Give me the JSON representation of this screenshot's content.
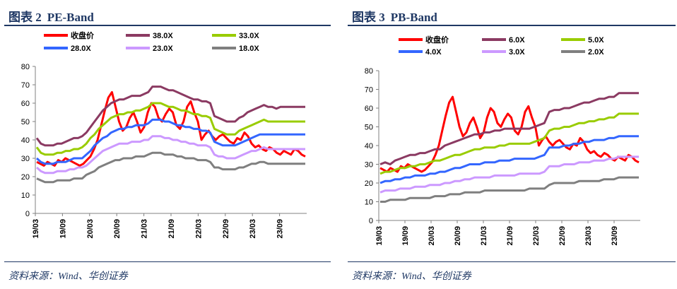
{
  "panels": [
    {
      "figure_label": "图表 2",
      "figure_title": "PE-Band",
      "source": "资料来源：Wind、华创证券"
    },
    {
      "figure_label": "图表 3",
      "figure_title": "PB-Band",
      "source": "资料来源：Wind、华创证券"
    }
  ],
  "colors": {
    "price": "#ff0000",
    "band_high": "#8b3a62",
    "band_2": "#99cc00",
    "band_3": "#3366ff",
    "band_4": "#cc99ff",
    "band_low": "#7f7f7f",
    "title": "#1f3864"
  },
  "chart_data": [
    {
      "type": "line",
      "title": "PE-Band",
      "x_tick_labels": [
        "19/03",
        "19/09",
        "20/03",
        "20/09",
        "21/03",
        "21/09",
        "22/03",
        "22/09",
        "23/03",
        "23/09"
      ],
      "ylim": [
        0,
        80
      ],
      "y_ticks": [
        0,
        10,
        20,
        30,
        40,
        50,
        60,
        70,
        80
      ],
      "grid": false,
      "legend_position": "top",
      "series": [
        {
          "name": "收盘价",
          "color_key": "price",
          "values": [
            28,
            27,
            26,
            28,
            27,
            26,
            29,
            28,
            30,
            29,
            28,
            27,
            26,
            27,
            29,
            31,
            35,
            40,
            48,
            56,
            63,
            66,
            58,
            50,
            45,
            47,
            52,
            55,
            50,
            44,
            47,
            55,
            60,
            58,
            52,
            50,
            54,
            57,
            55,
            48,
            46,
            50,
            58,
            61,
            55,
            50,
            40,
            43,
            45,
            42,
            40,
            42,
            43,
            41,
            39,
            38,
            41,
            40,
            44,
            42,
            38,
            36,
            37,
            35,
            34,
            36,
            35,
            33,
            32,
            34,
            33,
            32,
            35,
            34,
            32,
            31
          ]
        },
        {
          "name": "38.0X",
          "color_key": "band_high",
          "values": [
            41,
            38,
            37,
            37,
            37,
            38,
            38,
            39,
            40,
            41,
            41,
            42,
            44,
            47,
            50,
            53,
            56,
            58,
            60,
            61,
            62,
            62,
            63,
            64,
            64,
            64,
            65,
            66,
            69,
            69,
            69,
            68,
            67,
            67,
            66,
            65,
            64,
            63,
            62,
            62,
            61,
            61,
            60,
            53,
            52,
            51,
            50,
            50,
            50,
            52,
            53,
            55,
            56,
            57,
            58,
            59,
            58,
            58,
            57,
            58,
            58,
            58,
            58,
            58,
            58,
            58
          ]
        },
        {
          "name": "33.0X",
          "color_key": "band_2",
          "values": [
            36,
            33,
            32,
            32,
            32,
            33,
            33,
            34,
            34,
            35,
            35,
            36,
            38,
            41,
            43,
            46,
            48,
            50,
            52,
            53,
            54,
            54,
            55,
            55,
            56,
            56,
            57,
            58,
            60,
            60,
            60,
            59,
            58,
            58,
            57,
            56,
            56,
            55,
            54,
            54,
            53,
            53,
            52,
            46,
            45,
            44,
            43,
            43,
            43,
            45,
            46,
            47,
            48,
            49,
            50,
            51,
            50,
            50,
            50,
            50,
            50,
            50,
            50,
            50,
            50,
            50
          ]
        },
        {
          "name": "28.0X",
          "color_key": "band_3",
          "values": [
            30,
            28,
            27,
            27,
            27,
            28,
            28,
            28,
            29,
            30,
            30,
            30,
            32,
            34,
            37,
            39,
            41,
            42,
            44,
            45,
            46,
            46,
            47,
            47,
            48,
            48,
            48,
            49,
            51,
            51,
            51,
            50,
            50,
            49,
            48,
            48,
            47,
            47,
            46,
            46,
            45,
            45,
            44,
            39,
            38,
            37,
            37,
            37,
            37,
            38,
            39,
            40,
            41,
            42,
            43,
            43,
            43,
            43,
            43,
            43,
            43,
            43,
            43,
            43,
            43,
            43
          ]
        },
        {
          "name": "23.0X",
          "color_key": "band_4",
          "values": [
            25,
            23,
            22,
            22,
            22,
            23,
            23,
            23,
            24,
            24,
            25,
            25,
            26,
            28,
            30,
            32,
            34,
            35,
            36,
            37,
            38,
            38,
            38,
            39,
            39,
            39,
            40,
            40,
            42,
            42,
            42,
            41,
            41,
            40,
            40,
            39,
            39,
            38,
            38,
            37,
            37,
            37,
            36,
            32,
            31,
            31,
            30,
            30,
            30,
            31,
            32,
            33,
            34,
            34,
            35,
            36,
            35,
            35,
            35,
            35,
            35,
            35,
            35,
            35,
            35,
            35
          ]
        },
        {
          "name": "18.0X",
          "color_key": "band_low",
          "values": [
            19,
            18,
            17,
            17,
            17,
            18,
            18,
            18,
            18,
            19,
            19,
            19,
            21,
            22,
            23,
            25,
            26,
            27,
            28,
            29,
            29,
            30,
            30,
            30,
            31,
            31,
            31,
            32,
            33,
            33,
            33,
            32,
            32,
            32,
            31,
            31,
            30,
            30,
            30,
            29,
            29,
            29,
            28,
            25,
            25,
            24,
            24,
            24,
            24,
            25,
            25,
            26,
            27,
            27,
            28,
            28,
            27,
            27,
            27,
            27,
            27,
            27,
            27,
            27,
            27,
            27
          ]
        }
      ]
    },
    {
      "type": "line",
      "title": "PB-Band",
      "x_tick_labels": [
        "19/03",
        "19/09",
        "20/03",
        "20/09",
        "21/03",
        "21/09",
        "22/03",
        "22/09",
        "23/03",
        "23/09"
      ],
      "ylim": [
        0,
        80
      ],
      "y_ticks": [
        0,
        10,
        20,
        30,
        40,
        50,
        60,
        70,
        80
      ],
      "grid": false,
      "legend_position": "top",
      "series": [
        {
          "name": "收盘价",
          "color_key": "price",
          "values": [
            28,
            27,
            26,
            28,
            27,
            26,
            29,
            28,
            30,
            29,
            28,
            27,
            26,
            27,
            29,
            31,
            35,
            40,
            48,
            56,
            63,
            66,
            58,
            50,
            45,
            47,
            52,
            55,
            50,
            44,
            47,
            55,
            60,
            58,
            52,
            50,
            54,
            57,
            55,
            48,
            46,
            50,
            58,
            61,
            55,
            50,
            40,
            43,
            45,
            42,
            40,
            42,
            43,
            41,
            39,
            38,
            41,
            40,
            44,
            42,
            38,
            36,
            37,
            35,
            34,
            36,
            35,
            33,
            32,
            34,
            33,
            32,
            35,
            34,
            32,
            31
          ]
        },
        {
          "name": "6.0X",
          "color_key": "band_high",
          "values": [
            30,
            31,
            30,
            32,
            33,
            34,
            35,
            35,
            36,
            36,
            37,
            38,
            38,
            40,
            41,
            42,
            43,
            44,
            45,
            46,
            46,
            47,
            47,
            48,
            48,
            49,
            49,
            49,
            49,
            49,
            49,
            50,
            51,
            52,
            58,
            59,
            59,
            60,
            60,
            61,
            62,
            63,
            63,
            64,
            65,
            65,
            66,
            66,
            68,
            68,
            68,
            68,
            68
          ]
        },
        {
          "name": "5.0X",
          "color_key": "band_2",
          "values": [
            25,
            26,
            26,
            27,
            28,
            28,
            29,
            29,
            30,
            30,
            31,
            32,
            32,
            33,
            34,
            35,
            35,
            36,
            37,
            38,
            38,
            39,
            39,
            39,
            40,
            40,
            41,
            41,
            41,
            41,
            41,
            42,
            43,
            44,
            48,
            49,
            49,
            50,
            50,
            51,
            52,
            52,
            53,
            53,
            54,
            54,
            55,
            55,
            57,
            57,
            57,
            57,
            57
          ]
        },
        {
          "name": "4.0X",
          "color_key": "band_3",
          "values": [
            20,
            21,
            21,
            22,
            22,
            23,
            23,
            24,
            24,
            24,
            25,
            25,
            26,
            26,
            27,
            28,
            28,
            29,
            30,
            30,
            30,
            31,
            31,
            31,
            32,
            32,
            32,
            33,
            33,
            33,
            33,
            33,
            34,
            35,
            39,
            39,
            39,
            40,
            40,
            41,
            41,
            42,
            42,
            43,
            43,
            43,
            44,
            44,
            45,
            45,
            45,
            45,
            45
          ]
        },
        {
          "name": "3.0X",
          "color_key": "band_4",
          "values": [
            15,
            16,
            16,
            16,
            17,
            17,
            17,
            18,
            18,
            18,
            19,
            19,
            19,
            20,
            20,
            21,
            21,
            22,
            22,
            23,
            23,
            23,
            23,
            24,
            24,
            24,
            24,
            24,
            25,
            25,
            25,
            25,
            25,
            26,
            29,
            29,
            29,
            30,
            30,
            30,
            31,
            31,
            31,
            32,
            32,
            32,
            33,
            33,
            34,
            34,
            34,
            34,
            34
          ]
        },
        {
          "name": "2.0X",
          "color_key": "band_low",
          "values": [
            10,
            10,
            11,
            11,
            11,
            11,
            12,
            12,
            12,
            12,
            12,
            13,
            13,
            13,
            14,
            14,
            14,
            15,
            15,
            15,
            15,
            16,
            16,
            16,
            16,
            16,
            16,
            16,
            16,
            16,
            17,
            17,
            17,
            17,
            19,
            20,
            20,
            20,
            20,
            20,
            21,
            21,
            21,
            21,
            21,
            22,
            22,
            22,
            23,
            23,
            23,
            23,
            23
          ]
        }
      ]
    }
  ]
}
